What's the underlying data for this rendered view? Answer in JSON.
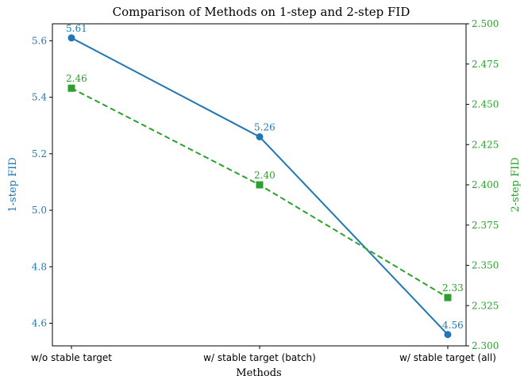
{
  "chart_data": {
    "type": "line",
    "title": "Comparison of Methods on 1-step and 2-step FID",
    "xlabel": "Methods",
    "categories": [
      "w/o stable target",
      "w/ stable target (batch)",
      "w/ stable target (all)"
    ],
    "y_left": {
      "label": "1-step FID",
      "ylim": [
        4.52,
        5.66
      ],
      "ticks": [
        "4.6",
        "4.8",
        "5.0",
        "5.2",
        "5.4",
        "5.6"
      ],
      "color": "#1f77b4"
    },
    "y_right": {
      "label": "2-step FID",
      "ylim": [
        2.3,
        2.5
      ],
      "ticks": [
        "2.300",
        "2.325",
        "2.350",
        "2.375",
        "2.400",
        "2.425",
        "2.450",
        "2.475",
        "2.500"
      ],
      "color": "#2ca02c"
    },
    "series": [
      {
        "axis": "left",
        "values": [
          5.61,
          5.26,
          4.56
        ],
        "labels": [
          "5.61",
          "5.26",
          "4.56"
        ],
        "color": "#1f77b4",
        "style": "solid",
        "marker": "circle"
      },
      {
        "axis": "right",
        "values": [
          2.46,
          2.4,
          2.33
        ],
        "labels": [
          "2.46",
          "2.40",
          "2.33"
        ],
        "color": "#2ca02c",
        "style": "dashed",
        "marker": "square"
      }
    ],
    "grid": false,
    "legend": "none"
  }
}
